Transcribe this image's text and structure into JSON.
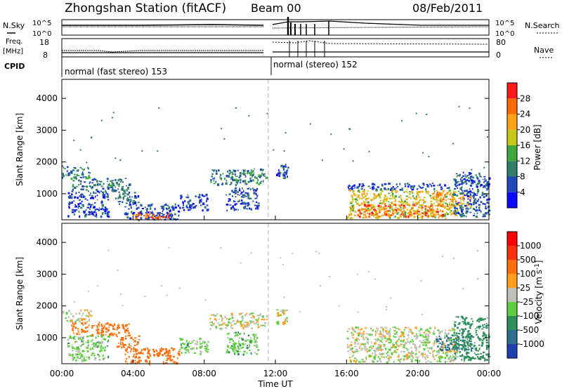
{
  "header": {
    "station": "Zhongshan Station (fitACF)",
    "beam": "Beam 00",
    "date": "08/Feb/2011"
  },
  "summary": {
    "nsky_label": "N.Sky",
    "nsky_ticks": [
      "10^5",
      "10^0"
    ],
    "freq_label": "Freq.",
    "freq_unit": "[MHz]",
    "freq_ticks": [
      "18",
      "8"
    ],
    "nsearch_label": "N.Search",
    "nsearch_ticks": [
      "10^5",
      "10^0"
    ],
    "nave_label": "Nave",
    "nave_ticks": [
      "80",
      "0"
    ],
    "cpid_label": "CPID",
    "cpid_modes": [
      {
        "label": "normal (fast stereo) 153",
        "start": 0,
        "end": 11.6
      },
      {
        "label": "normal (stereo) 152",
        "start": 11.6,
        "end": 24
      }
    ]
  },
  "axes": {
    "xlabel": "Time UT",
    "xticks": [
      "00:00",
      "04:00",
      "08:00",
      "12:00",
      "16:00",
      "20:00",
      "00:00"
    ],
    "ylabel": "Slant Range [km]",
    "yticks": [
      "1000",
      "2000",
      "3000",
      "4000"
    ]
  },
  "power_colorbar": {
    "label": "Power [dB]",
    "ticks": [
      "4",
      "8",
      "12",
      "16",
      "20",
      "24",
      "28"
    ],
    "colors": [
      "#0a0aff",
      "#1f48b8",
      "#2f7d6a",
      "#3fa83c",
      "#c8c81a",
      "#ffa21a",
      "#ff6a00",
      "#ff1a1a"
    ]
  },
  "velocity_colorbar": {
    "label": "Velocity [m s^-1]",
    "ticks": [
      "1000",
      "500",
      "100",
      "25",
      "-25",
      "-100",
      "-500",
      "-1000"
    ],
    "colors": [
      "#1f3fb0",
      "#2f6f8f",
      "#2f8f5a",
      "#5fcf3f",
      "#c0c0b8",
      "#ff9f20",
      "#ff6f10",
      "#ff3010",
      "#ff0000"
    ]
  },
  "chart_data": [
    {
      "type": "heatmap",
      "panel": "power",
      "xlabel": "Time UT",
      "ylabel": "Slant Range [km]",
      "xlim": [
        0,
        24
      ],
      "ylim": [
        180,
        4600
      ],
      "grid": false,
      "value_label": "Power [dB]",
      "patches": [
        {
          "t0": 0.0,
          "t1": 1.6,
          "r0": 1500,
          "r1": 1900,
          "v": 10
        },
        {
          "t0": 0.5,
          "t1": 3.8,
          "r0": 1100,
          "r1": 1500,
          "v": 9
        },
        {
          "t0": 0.3,
          "t1": 2.6,
          "r0": 300,
          "r1": 1100,
          "v": 5
        },
        {
          "t0": 3.0,
          "t1": 4.3,
          "r0": 700,
          "r1": 1100,
          "v": 7
        },
        {
          "t0": 3.5,
          "t1": 6.6,
          "r0": 200,
          "r1": 700,
          "v": 6
        },
        {
          "t0": 4.0,
          "t1": 6.2,
          "r0": 200,
          "r1": 420,
          "v": 27
        },
        {
          "t0": 6.6,
          "t1": 8.2,
          "r0": 500,
          "r1": 1000,
          "v": 5
        },
        {
          "t0": 8.3,
          "t1": 11.5,
          "r0": 1300,
          "r1": 1800,
          "v": 10
        },
        {
          "t0": 9.2,
          "t1": 11.0,
          "r0": 500,
          "r1": 1200,
          "v": 6
        },
        {
          "t0": 12.0,
          "t1": 12.7,
          "r0": 1450,
          "r1": 1950,
          "v": 6
        },
        {
          "t0": 16.0,
          "t1": 22.1,
          "r0": 1150,
          "r1": 1350,
          "v": 5
        },
        {
          "t0": 16.0,
          "t1": 22.2,
          "r0": 250,
          "r1": 1150,
          "v": 19
        },
        {
          "t0": 16.6,
          "t1": 21.4,
          "r0": 300,
          "r1": 700,
          "v": 26
        },
        {
          "t0": 21.0,
          "t1": 23.0,
          "r0": 600,
          "r1": 1100,
          "v": 23
        },
        {
          "t0": 22.0,
          "t1": 24.0,
          "r0": 300,
          "r1": 1700,
          "v": 7
        }
      ]
    },
    {
      "type": "heatmap",
      "panel": "velocity",
      "xlabel": "Time UT",
      "ylabel": "Slant Range [km]",
      "xlim": [
        0,
        24
      ],
      "ylim": [
        180,
        4600
      ],
      "grid": false,
      "value_label": "Velocity [m s^-1]",
      "patches": [
        {
          "t0": 0.0,
          "t1": 1.6,
          "r0": 1500,
          "r1": 1900,
          "v": 0
        },
        {
          "t0": 0.5,
          "t1": 3.8,
          "r0": 1100,
          "r1": 1500,
          "v": -150
        },
        {
          "t0": 0.3,
          "t1": 2.6,
          "r0": 300,
          "r1": 1100,
          "v": 60
        },
        {
          "t0": 3.0,
          "t1": 4.3,
          "r0": 700,
          "r1": 1100,
          "v": -200
        },
        {
          "t0": 3.5,
          "t1": 6.6,
          "r0": 200,
          "r1": 700,
          "v": -400
        },
        {
          "t0": 6.6,
          "t1": 8.2,
          "r0": 500,
          "r1": 1000,
          "v": 50
        },
        {
          "t0": 8.3,
          "t1": 11.5,
          "r0": 1300,
          "r1": 1800,
          "v": 0
        },
        {
          "t0": 9.2,
          "t1": 11.0,
          "r0": 500,
          "r1": 1200,
          "v": 60
        },
        {
          "t0": 12.0,
          "t1": 12.7,
          "r0": 1450,
          "r1": 1950,
          "v": 0
        },
        {
          "t0": 16.0,
          "t1": 22.1,
          "r0": 1150,
          "r1": 1350,
          "v": 0
        },
        {
          "t0": 16.0,
          "t1": 22.2,
          "r0": 250,
          "r1": 1150,
          "v": 10
        },
        {
          "t0": 21.0,
          "t1": 23.0,
          "r0": 600,
          "r1": 1100,
          "v": 600
        },
        {
          "t0": 22.0,
          "t1": 24.0,
          "r0": 300,
          "r1": 1700,
          "v": 200
        }
      ]
    },
    {
      "type": "line",
      "panel": "summary",
      "series": [
        {
          "x": [
            0,
            11.6
          ],
          "y": [
            1000,
            1000
          ]
        },
        {
          "x": [
            12.0,
            24.0
          ],
          "y": [
            3000,
            4000
          ]
        }
      ]
    }
  ]
}
